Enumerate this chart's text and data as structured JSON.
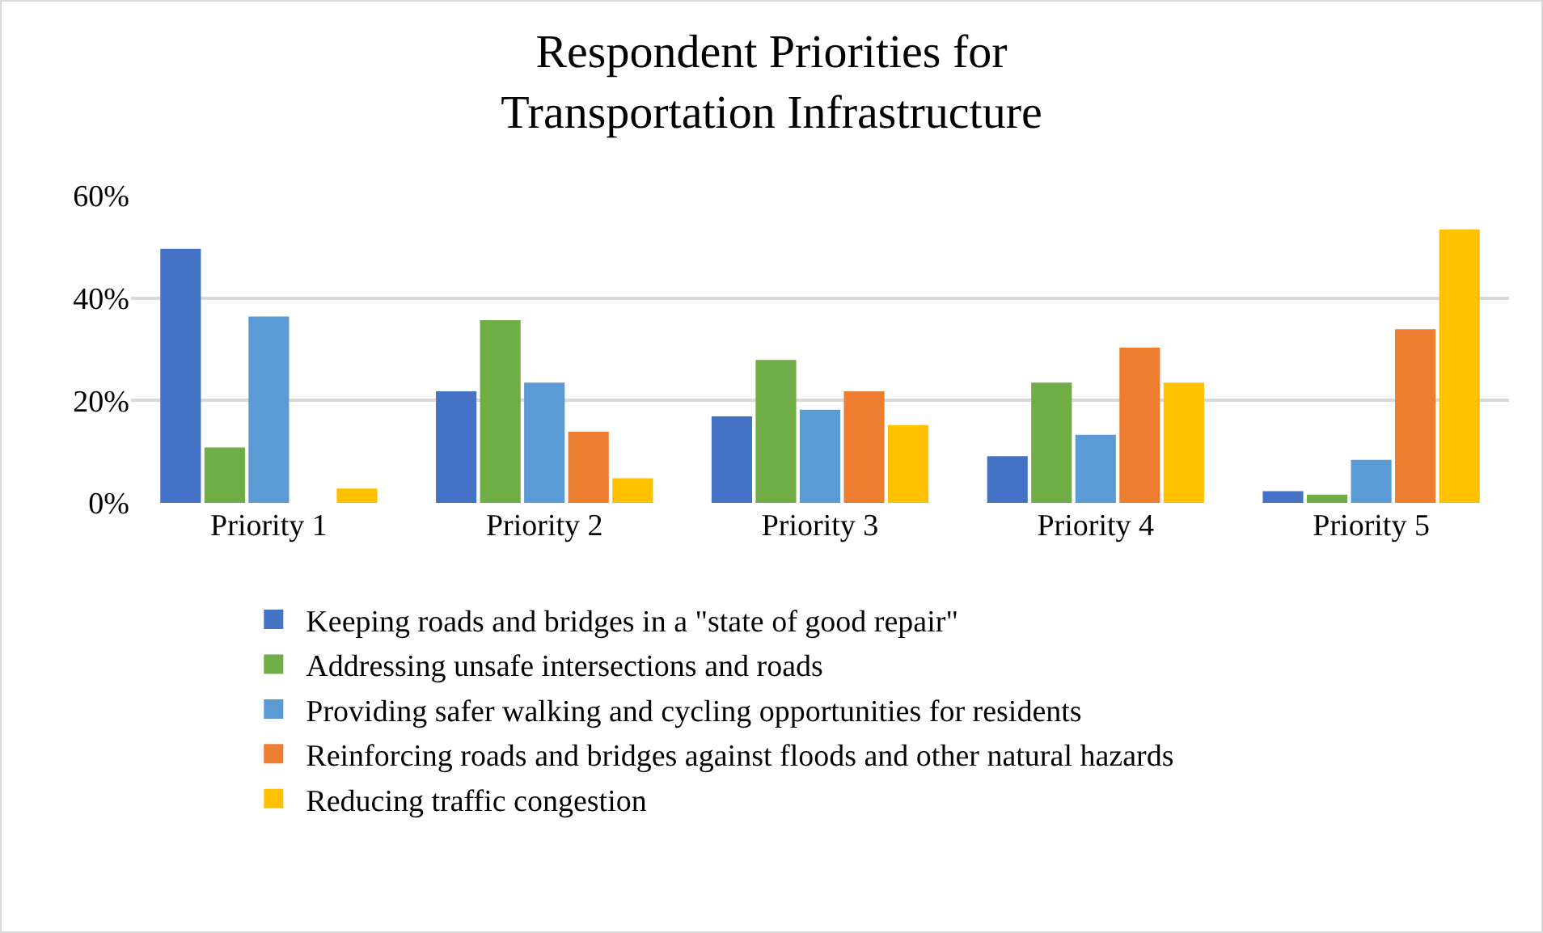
{
  "chart_data": {
    "type": "bar",
    "title": "Respondent Priorities for Transportation Infrastructure",
    "categories": [
      "Priority 1",
      "Priority 2",
      "Priority 3",
      "Priority 4",
      "Priority 5"
    ],
    "series": [
      {
        "name": "Keeping roads and bridges in a \"state of good repair\"",
        "color": "#4472c4",
        "values": [
          49.6,
          21.8,
          16.9,
          9.1,
          2.3
        ]
      },
      {
        "name": "Addressing unsafe intersections and roads",
        "color": "#70ad47",
        "values": [
          10.8,
          35.7,
          27.9,
          23.5,
          1.6
        ]
      },
      {
        "name": "Providing safer walking and cycling opportunities for residents",
        "color": "#5b9bd5",
        "values": [
          36.4,
          23.5,
          18.2,
          13.3,
          8.4
        ]
      },
      {
        "name": "Reinforcing roads and bridges against floods and other natural hazards",
        "color": "#ed7d31",
        "values": [
          0,
          13.9,
          21.8,
          30.3,
          33.9
        ]
      },
      {
        "name": "Reducing traffic congestion",
        "color": "#ffc000",
        "values": [
          2.8,
          4.8,
          15.2,
          23.5,
          53.4
        ]
      }
    ],
    "ylim": [
      0,
      60
    ],
    "yticks": [
      {
        "value": 0,
        "label": "0%"
      },
      {
        "value": 20,
        "label": "20%"
      },
      {
        "value": 40,
        "label": "40%"
      },
      {
        "value": 60,
        "label": "60%"
      }
    ],
    "grid": "y",
    "legend": "bottom"
  }
}
